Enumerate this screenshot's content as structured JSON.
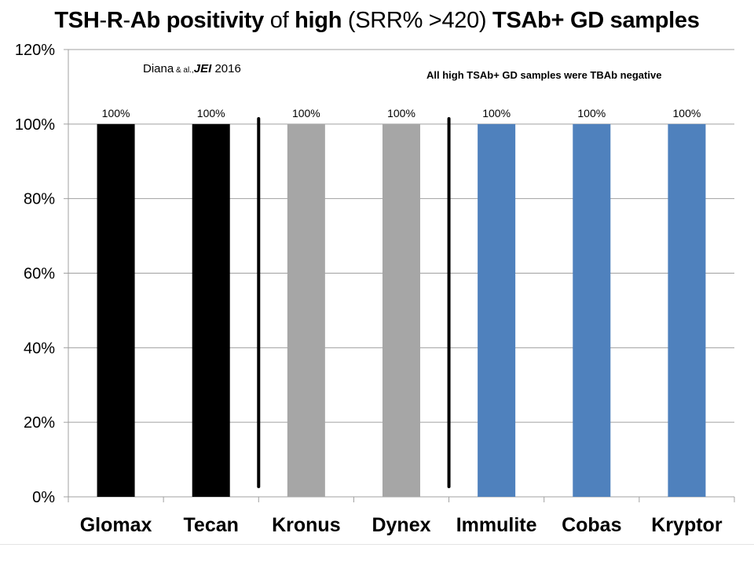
{
  "title": {
    "part1": "TSH",
    "part2": "-",
    "part3": "R",
    "part4": "-",
    "part5": "Ab positivity",
    "part6": " of ",
    "part7": "high",
    "part8": " (SRR% >420) ",
    "part9": "TSAb+ GD samples"
  },
  "citation": {
    "author": "Diana",
    "etal": " & al.,",
    "journal": "JEI",
    "year": " 2016"
  },
  "note": "All high TSAb+ GD samples were TBAb negative",
  "colors": {
    "black": "#000000",
    "gray": "#a6a6a6",
    "blue": "#4f81bd",
    "grid": "#a0a0a0"
  },
  "chart_data": {
    "type": "bar",
    "categories": [
      "Glomax",
      "Tecan",
      "Kronus",
      "Dynex",
      "Immulite",
      "Cobas",
      "Kryptor"
    ],
    "values": [
      100,
      100,
      100,
      100,
      100,
      100,
      100
    ],
    "value_labels": [
      "100%",
      "100%",
      "100%",
      "100%",
      "100%",
      "100%",
      "100%"
    ],
    "bar_colors": [
      "black",
      "black",
      "gray",
      "gray",
      "blue",
      "blue",
      "blue"
    ],
    "ylim": [
      0,
      120
    ],
    "yticks": [
      0,
      20,
      40,
      60,
      80,
      100,
      120
    ],
    "ytick_labels": [
      "0%",
      "20%",
      "40%",
      "60%",
      "80%",
      "100%",
      "120%"
    ],
    "grid": true,
    "separators_after": [
      "Tecan",
      "Dynex"
    ],
    "xlabel": "",
    "ylabel": ""
  }
}
